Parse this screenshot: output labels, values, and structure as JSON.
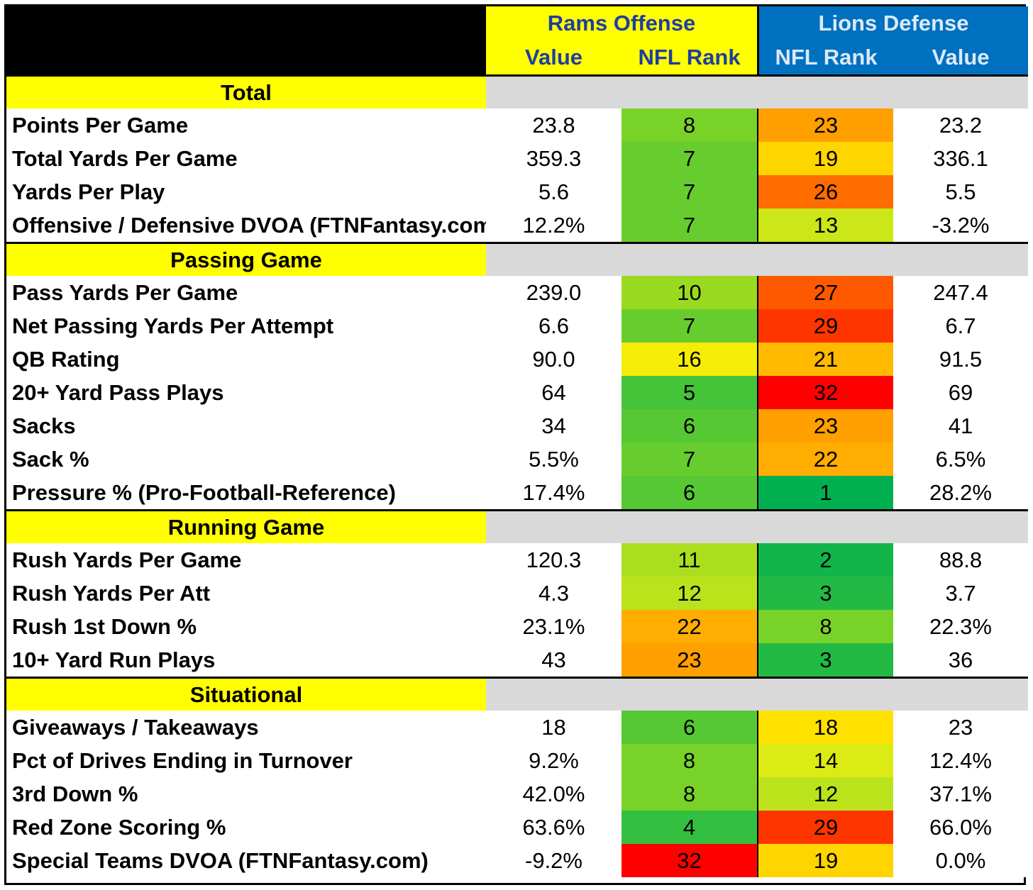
{
  "header": {
    "offense_team": "Rams Offense",
    "defense_team": "Lions Defense",
    "off_cols": [
      "Value",
      "NFL Rank"
    ],
    "def_cols": [
      "NFL Rank",
      "Value"
    ]
  },
  "colors": {
    "rams_header": "#ffff00",
    "rams_text": "#1f3ea0",
    "lions_header": "#0070c0",
    "lions_text": "#dbe9f7",
    "section_label_bg": "#ffff00",
    "section_fill": "#d9d9d9"
  },
  "sections": [
    {
      "title": "Total",
      "rows": [
        {
          "label": "Points Per Game",
          "off_value": "23.8",
          "off_rank": "8",
          "def_rank": "23",
          "def_value": "23.2"
        },
        {
          "label": "Total Yards Per Game",
          "off_value": "359.3",
          "off_rank": "7",
          "def_rank": "19",
          "def_value": "336.1"
        },
        {
          "label": "Yards Per Play",
          "off_value": "5.6",
          "off_rank": "7",
          "def_rank": "26",
          "def_value": "5.5"
        },
        {
          "label": "Offensive / Defensive DVOA (FTNFantasy.com)",
          "off_value": "12.2%",
          "off_rank": "7",
          "def_rank": "13",
          "def_value": "-3.2%"
        }
      ]
    },
    {
      "title": "Passing Game",
      "rows": [
        {
          "label": "Pass Yards Per Game",
          "off_value": "239.0",
          "off_rank": "10",
          "def_rank": "27",
          "def_value": "247.4"
        },
        {
          "label": "Net Passing Yards Per Attempt",
          "off_value": "6.6",
          "off_rank": "7",
          "def_rank": "29",
          "def_value": "6.7"
        },
        {
          "label": "QB Rating",
          "off_value": "90.0",
          "off_rank": "16",
          "def_rank": "21",
          "def_value": "91.5"
        },
        {
          "label": "20+ Yard Pass Plays",
          "off_value": "64",
          "off_rank": "5",
          "def_rank": "32",
          "def_value": "69"
        },
        {
          "label": "Sacks",
          "off_value": "34",
          "off_rank": "6",
          "def_rank": "23",
          "def_value": "41"
        },
        {
          "label": "Sack %",
          "off_value": "5.5%",
          "off_rank": "7",
          "def_rank": "22",
          "def_value": "6.5%"
        },
        {
          "label": "Pressure % (Pro-Football-Reference)",
          "off_value": "17.4%",
          "off_rank": "6",
          "def_rank": "1",
          "def_value": "28.2%"
        }
      ]
    },
    {
      "title": "Running Game",
      "rows": [
        {
          "label": "Rush Yards Per Game",
          "off_value": "120.3",
          "off_rank": "11",
          "def_rank": "2",
          "def_value": "88.8"
        },
        {
          "label": "Rush Yards Per Att",
          "off_value": "4.3",
          "off_rank": "12",
          "def_rank": "3",
          "def_value": "3.7"
        },
        {
          "label": "Rush 1st Down %",
          "off_value": "23.1%",
          "off_rank": "22",
          "def_rank": "8",
          "def_value": "22.3%"
        },
        {
          "label": "10+ Yard Run Plays",
          "off_value": "43",
          "off_rank": "23",
          "def_rank": "3",
          "def_value": "36"
        }
      ]
    },
    {
      "title": "Situational",
      "rows": [
        {
          "label": "Giveaways / Takeaways",
          "off_value": "18",
          "off_rank": "6",
          "def_rank": "18",
          "def_value": "23"
        },
        {
          "label": "Pct of Drives Ending in Turnover",
          "off_value": "9.2%",
          "off_rank": "8",
          "def_rank": "14",
          "def_value": "12.4%"
        },
        {
          "label": "3rd Down %",
          "off_value": "42.0%",
          "off_rank": "8",
          "def_rank": "12",
          "def_value": "37.1%"
        },
        {
          "label": "Red Zone Scoring %",
          "off_value": "63.6%",
          "off_rank": "4",
          "def_rank": "29",
          "def_value": "66.0%"
        },
        {
          "label": "Special Teams DVOA  (FTNFantasy.com)",
          "off_value": "-9.2%",
          "off_rank": "32",
          "def_rank": "19",
          "def_value": "0.0%"
        }
      ]
    }
  ]
}
